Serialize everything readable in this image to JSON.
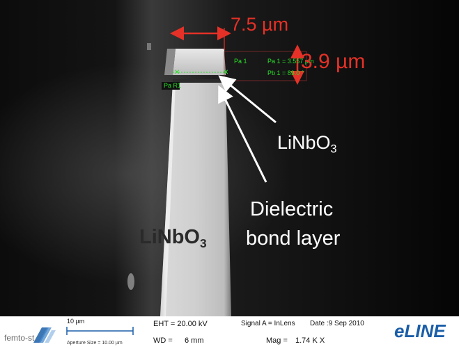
{
  "annotations": {
    "width_measure": "7.5 µm",
    "height_measure": "3.9 µm",
    "top_layer_label": "LiNbO",
    "top_layer_sub": "3",
    "bond_label_line1": "Dielectric",
    "bond_label_line2": "bond layer",
    "substrate_label": "LiNbO",
    "substrate_sub": "3"
  },
  "overlay": {
    "pa1": "Pa 1",
    "pa1_value": "Pa 1 = 3.557 µm",
    "pb1_value": "Pb 1 = 89.0 °",
    "par1": "Pa R1"
  },
  "info_bar": {
    "logo_left": "femto-st",
    "scale_label": "10 µm",
    "aperture": "Aperture Size = 10.00 µm",
    "eht": "EHT = 20.00 kV",
    "wd_label": "WD =",
    "wd_value": "6 mm",
    "signal": "Signal A = InLens",
    "date": "Date :9 Sep 2010",
    "mag_label": "Mag =",
    "mag_value": "1.74 K X",
    "logo_right": "eLINE"
  },
  "colors": {
    "annotation_red": "#e53127",
    "overlay_green": "#29e229",
    "logo_blue": "#1b5ea8"
  }
}
